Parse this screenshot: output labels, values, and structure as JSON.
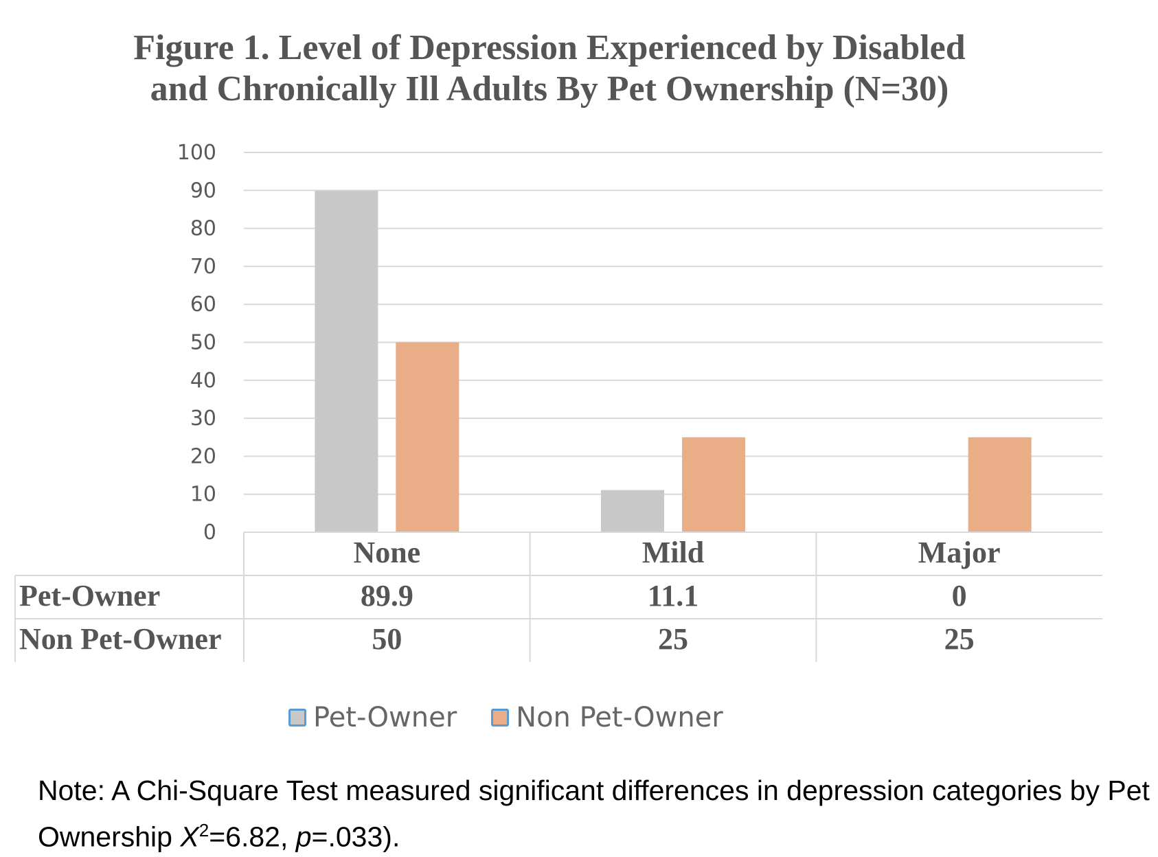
{
  "title_line1": "Figure 1. Level of Depression Experienced by Disabled",
  "title_line2": "and Chronically Ill Adults By Pet Ownership (N=30)",
  "chart_data": {
    "type": "bar",
    "title": "Figure 1. Level of Depression Experienced by Disabled and Chronically Ill Adults By Pet Ownership (N=30)",
    "categories": [
      "None",
      "Mild",
      "Major"
    ],
    "series": [
      {
        "name": "Pet-Owner",
        "values": [
          89.9,
          11.1,
          0
        ],
        "labels": [
          "89.9",
          "11.1",
          "0"
        ],
        "color": "#c8c8c8"
      },
      {
        "name": "Non Pet-Owner",
        "values": [
          50,
          25,
          25
        ],
        "labels": [
          "50",
          "25",
          "25"
        ],
        "color": "#e9ae88"
      }
    ],
    "ylim": [
      0,
      100
    ],
    "yticks": [
      "0",
      "10",
      "20",
      "30",
      "40",
      "50",
      "60",
      "70",
      "80",
      "90",
      "100"
    ],
    "grid": true,
    "legend": "bottom",
    "data_table": true
  },
  "legend_swatch_border": "#5b9bd5",
  "note": {
    "prefix": "Note: A Chi-Square Test measured significant differences in depression categories by Pet Ownership ",
    "stat_symbol": "X",
    "stat_superscript": "2",
    "stat_value": "=6.82, ",
    "p_symbol": "p",
    "p_value": "=.033)."
  }
}
